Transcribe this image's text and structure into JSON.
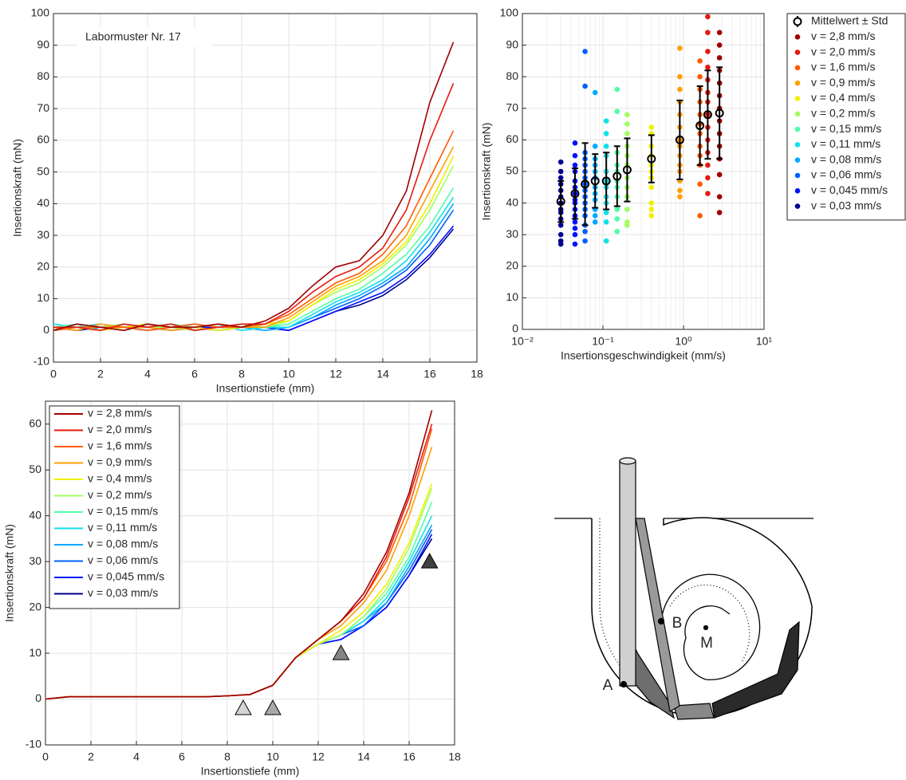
{
  "chart_data": [
    {
      "type": "line",
      "annotation": "Labormuster Nr. 17",
      "xlabel": "Insertionstiefe (mm)",
      "ylabel": "Insertionskraft (mN)",
      "xlim": [
        0,
        18
      ],
      "ylim": [
        -10,
        100
      ],
      "xticks": [
        0,
        2,
        4,
        6,
        8,
        10,
        12,
        14,
        16,
        18
      ],
      "yticks": [
        -10,
        0,
        10,
        20,
        30,
        40,
        50,
        60,
        70,
        80,
        90,
        100
      ],
      "grid": true,
      "x": [
        0,
        1,
        2,
        3,
        4,
        5,
        6,
        7,
        8,
        9,
        10,
        11,
        12,
        13,
        14,
        15,
        16,
        17
      ],
      "series": [
        {
          "color": "#a00000",
          "values": [
            0,
            2,
            1,
            0,
            2,
            1,
            1,
            2,
            1,
            3,
            7,
            14,
            20,
            22,
            30,
            44,
            72,
            91
          ]
        },
        {
          "color": "#e8190f",
          "values": [
            1,
            1,
            0,
            2,
            1,
            2,
            0,
            1,
            2,
            2,
            6,
            12,
            17,
            20,
            26,
            38,
            60,
            78
          ]
        },
        {
          "color": "#ff5a00",
          "values": [
            0,
            1,
            1,
            1,
            0,
            1,
            2,
            1,
            1,
            2,
            5,
            10,
            15,
            18,
            24,
            33,
            48,
            63
          ]
        },
        {
          "color": "#ffa000",
          "values": [
            1,
            0,
            2,
            1,
            1,
            0,
            1,
            2,
            1,
            1,
            4,
            9,
            14,
            17,
            22,
            30,
            44,
            58
          ]
        },
        {
          "color": "#f0f000",
          "values": [
            1,
            1,
            0,
            1,
            2,
            1,
            1,
            0,
            1,
            2,
            3,
            8,
            13,
            16,
            21,
            28,
            40,
            55
          ]
        },
        {
          "color": "#a0ff60",
          "values": [
            0,
            1,
            1,
            2,
            1,
            1,
            0,
            1,
            2,
            1,
            3,
            8,
            12,
            15,
            20,
            27,
            38,
            52
          ]
        },
        {
          "color": "#50ffa8",
          "values": [
            1,
            2,
            0,
            1,
            1,
            2,
            1,
            0,
            1,
            1,
            2,
            6,
            10,
            13,
            18,
            24,
            33,
            45
          ]
        },
        {
          "color": "#10e0e8",
          "values": [
            2,
            1,
            1,
            0,
            2,
            1,
            1,
            2,
            0,
            1,
            1,
            5,
            9,
            12,
            16,
            22,
            31,
            42
          ]
        },
        {
          "color": "#00a8ff",
          "values": [
            1,
            1,
            2,
            1,
            0,
            1,
            2,
            1,
            1,
            0,
            1,
            4,
            8,
            11,
            15,
            20,
            29,
            40
          ]
        },
        {
          "color": "#0060ff",
          "values": [
            0,
            2,
            1,
            1,
            1,
            2,
            0,
            1,
            1,
            1,
            1,
            4,
            7,
            10,
            14,
            19,
            27,
            38
          ]
        },
        {
          "color": "#0010ff",
          "values": [
            1,
            1,
            1,
            2,
            1,
            0,
            1,
            1,
            2,
            1,
            0,
            3,
            6,
            9,
            12,
            17,
            24,
            33
          ]
        },
        {
          "color": "#000090",
          "values": [
            1,
            0,
            1,
            1,
            2,
            1,
            1,
            0,
            1,
            1,
            0,
            3,
            6,
            8,
            11,
            16,
            23,
            32
          ]
        }
      ]
    },
    {
      "type": "scatter",
      "xscale": "log",
      "xlabel": "Insertionsgeschwindigkeit (mm/s)",
      "ylabel": "Insertionskraft (mN)",
      "xlim": [
        0.01,
        10
      ],
      "ylim": [
        0,
        100
      ],
      "xticks": [
        {
          "value": 0.01,
          "label": "10⁻²"
        },
        {
          "value": 0.1,
          "label": "10⁻¹"
        },
        {
          "value": 1,
          "label": "10⁰"
        },
        {
          "value": 10,
          "label": "10¹"
        }
      ],
      "xminorticks": [
        0.02,
        0.03,
        0.04,
        0.05,
        0.06,
        0.07,
        0.08,
        0.09,
        0.2,
        0.3,
        0.4,
        0.5,
        0.6,
        0.7,
        0.8,
        0.9,
        2,
        3,
        4,
        5,
        6,
        7,
        8,
        9
      ],
      "yticks": [
        0,
        10,
        20,
        30,
        40,
        50,
        60,
        70,
        80,
        90,
        100
      ],
      "grid": true,
      "legend": "outside right",
      "series": [
        {
          "name": "Mittelwert ± Std",
          "color": "#000000",
          "x": [
            0.03,
            0.045,
            0.06,
            0.08,
            0.11,
            0.15,
            0.2,
            0.4,
            0.9,
            1.6,
            2.0,
            2.8
          ],
          "values": [
            40.5,
            43,
            46,
            47,
            47,
            48.5,
            50.5,
            54,
            60,
            64.5,
            68,
            68.5
          ],
          "errors": [
            6.5,
            8,
            13,
            8.5,
            9,
            9.5,
            10,
            7.5,
            12.5,
            12.5,
            14,
            14.5
          ]
        },
        {
          "name": "v = 2,8 mm/s",
          "color": "#a00000",
          "x": 2.8,
          "values": [
            94,
            90,
            86,
            82,
            78,
            74,
            70,
            66,
            62,
            58,
            54,
            49,
            42,
            37
          ]
        },
        {
          "name": "v = 2,0 mm/s",
          "color": "#e8190f",
          "x": 2.0,
          "values": [
            99,
            94,
            88,
            83,
            79,
            75,
            72,
            68,
            64,
            60,
            56,
            52,
            48,
            43
          ]
        },
        {
          "name": "v = 1,6 mm/s",
          "color": "#ff5a00",
          "x": 1.6,
          "values": [
            85,
            80,
            76,
            72,
            68,
            65,
            62,
            58,
            55,
            52,
            46,
            36
          ]
        },
        {
          "name": "v = 0,9 mm/s",
          "color": "#ffa000",
          "x": 0.9,
          "values": [
            89,
            80,
            76,
            72,
            68,
            64,
            60,
            58,
            55,
            52,
            50,
            47,
            44,
            42
          ]
        },
        {
          "name": "v = 0,4 mm/s",
          "color": "#f0f000",
          "x": 0.4,
          "values": [
            64,
            62,
            58,
            55,
            52,
            50,
            48,
            45,
            40,
            38,
            36
          ]
        },
        {
          "name": "v = 0,2 mm/s",
          "color": "#a0ff60",
          "x": 0.2,
          "values": [
            68,
            65,
            62,
            58,
            55,
            52,
            48,
            45,
            42,
            38,
            34,
            33
          ]
        },
        {
          "name": "v = 0,15 mm/s",
          "color": "#50ffa8",
          "x": 0.15,
          "values": [
            76,
            69,
            56,
            52,
            50,
            47,
            45,
            42,
            38,
            35,
            31
          ]
        },
        {
          "name": "v = 0,11 mm/s",
          "color": "#10e0e8",
          "x": 0.11,
          "values": [
            66,
            62,
            58,
            55,
            50,
            47,
            45,
            42,
            40,
            37,
            34,
            28
          ]
        },
        {
          "name": "v = 0,08 mm/s",
          "color": "#00a8ff",
          "x": 0.08,
          "values": [
            75,
            58,
            54,
            52,
            50,
            48,
            45,
            43,
            41,
            38,
            36,
            34
          ]
        },
        {
          "name": "v = 0,06 mm/s",
          "color": "#0060ff",
          "x": 0.06,
          "values": [
            88,
            77,
            56,
            54,
            52,
            50,
            48,
            46,
            44,
            42,
            40,
            38,
            36,
            33,
            31,
            28
          ]
        },
        {
          "name": "v = 0,045 mm/s",
          "color": "#0010ff",
          "x": 0.045,
          "values": [
            59,
            55,
            52,
            50,
            47,
            45,
            43,
            41,
            40,
            38,
            36,
            34,
            32,
            30,
            27
          ]
        },
        {
          "name": "v = 0,03 mm/s",
          "color": "#000090",
          "x": 0.03,
          "values": [
            53,
            50,
            48,
            46,
            44,
            42,
            40,
            38,
            37,
            35,
            33,
            30,
            28,
            27
          ]
        }
      ]
    },
    {
      "type": "line",
      "xlabel": "Insertionstiefe (mm)",
      "ylabel": "Insertionskraft (mN)",
      "xlim": [
        0,
        18
      ],
      "ylim": [
        -10,
        65
      ],
      "xticks": [
        0,
        2,
        4,
        6,
        8,
        10,
        12,
        14,
        16,
        18
      ],
      "yticks": [
        -10,
        0,
        10,
        20,
        30,
        40,
        50,
        60
      ],
      "grid": true,
      "legend": "upper left",
      "x": [
        0,
        1,
        2,
        3,
        4,
        5,
        6,
        7,
        8,
        9,
        10,
        11,
        12,
        13,
        14,
        15,
        16,
        17
      ],
      "series": [
        {
          "name": "v = 2,8 mm/s",
          "color": "#a00000",
          "values": [
            0,
            0.5,
            0.5,
            0.5,
            0.5,
            0.5,
            0.5,
            0.5,
            0.7,
            1,
            3,
            9,
            13,
            17,
            23,
            32,
            45,
            63
          ]
        },
        {
          "name": "v = 2,0 mm/s",
          "color": "#e8190f",
          "values": [
            0,
            0.5,
            0.5,
            0.5,
            0.5,
            0.5,
            0.5,
            0.5,
            0.7,
            1,
            3,
            9,
            13,
            17,
            22,
            31,
            44,
            60
          ]
        },
        {
          "name": "v = 1,6 mm/s",
          "color": "#ff5a00",
          "values": [
            0,
            0.5,
            0.5,
            0.5,
            0.5,
            0.5,
            0.5,
            0.5,
            0.7,
            1,
            3,
            9,
            13,
            17,
            22,
            30,
            42,
            59
          ]
        },
        {
          "name": "v = 0,9 mm/s",
          "color": "#ffa000",
          "values": [
            0,
            0.5,
            0.5,
            0.5,
            0.5,
            0.5,
            0.5,
            0.5,
            0.7,
            1,
            3,
            9,
            13,
            16,
            21,
            28,
            40,
            55
          ]
        },
        {
          "name": "v = 0,4 mm/s",
          "color": "#f0f000",
          "values": [
            0,
            0.5,
            0.5,
            0.5,
            0.5,
            0.5,
            0.5,
            0.5,
            0.7,
            1,
            3,
            9,
            12,
            15,
            19,
            25,
            34,
            47
          ]
        },
        {
          "name": "v = 0,2 mm/s",
          "color": "#a0ff60",
          "values": [
            0,
            0.5,
            0.5,
            0.5,
            0.5,
            0.5,
            0.5,
            0.5,
            0.7,
            1,
            3,
            9,
            12,
            14,
            18,
            24,
            33,
            46
          ]
        },
        {
          "name": "v = 0,15 mm/s",
          "color": "#50ffa8",
          "values": [
            0,
            0.5,
            0.5,
            0.5,
            0.5,
            0.5,
            0.5,
            0.5,
            0.7,
            1,
            3,
            9,
            12,
            14,
            18,
            23,
            31,
            43
          ]
        },
        {
          "name": "v = 0,11 mm/s",
          "color": "#10e0e8",
          "values": [
            0,
            0.5,
            0.5,
            0.5,
            0.5,
            0.5,
            0.5,
            0.5,
            0.7,
            1,
            3,
            9,
            12,
            14,
            17,
            22,
            30,
            40
          ]
        },
        {
          "name": "v = 0,08 mm/s",
          "color": "#00a8ff",
          "values": [
            0,
            0.5,
            0.5,
            0.5,
            0.5,
            0.5,
            0.5,
            0.5,
            0.7,
            1,
            3,
            9,
            12,
            14,
            17,
            21,
            29,
            38
          ]
        },
        {
          "name": "v = 0,06 mm/s",
          "color": "#0060ff",
          "values": [
            0,
            0.5,
            0.5,
            0.5,
            0.5,
            0.5,
            0.5,
            0.5,
            0.7,
            1,
            3,
            9,
            12,
            14,
            16,
            21,
            28,
            37
          ]
        },
        {
          "name": "v = 0,045 mm/s",
          "color": "#0010ff",
          "values": [
            0,
            0.5,
            0.5,
            0.5,
            0.5,
            0.5,
            0.5,
            0.5,
            0.7,
            1,
            3,
            9,
            12,
            13,
            16,
            20,
            27,
            36
          ]
        },
        {
          "name": "v = 0,03 mm/s",
          "color": "#000090",
          "values": [
            0,
            0.5,
            0.5,
            0.5,
            0.5,
            0.5,
            0.5,
            0.5,
            0.7,
            1,
            3,
            9,
            12,
            13,
            16,
            20,
            27,
            35
          ]
        }
      ],
      "markers": {
        "x": [
          8.7,
          10,
          13,
          16.9
        ],
        "y": [
          -2,
          -2,
          10,
          30
        ],
        "colors": [
          "#d4d4d4",
          "#a8a8a8",
          "#858585",
          "#404040"
        ]
      }
    }
  ],
  "diagram": {
    "labels": [
      "A",
      "B",
      "M"
    ]
  }
}
